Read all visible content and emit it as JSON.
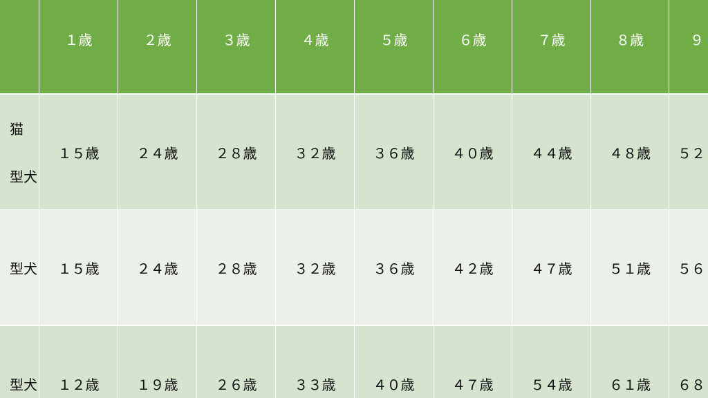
{
  "colors": {
    "header": "#70ad47",
    "row_dark": "#d5e3cf",
    "row_light": "#ebf0e8"
  },
  "header": [
    "",
    "１歳",
    "２歳",
    "３歳",
    "４歳",
    "５歳",
    "６歳",
    "７歳",
    "８歳",
    "９"
  ],
  "rows": [
    {
      "label": [
        "猫",
        "型犬"
      ],
      "values": [
        "１５歳",
        "２４歳",
        "２８歳",
        "３２歳",
        "３６歳",
        "４０歳",
        "４４歳",
        "４８歳",
        "５２"
      ]
    },
    {
      "label": [
        "型犬"
      ],
      "values": [
        "１５歳",
        "２４歳",
        "２８歳",
        "３２歳",
        "３６歳",
        "４２歳",
        "４７歳",
        "５１歳",
        "５６"
      ]
    },
    {
      "label": [
        "型犬"
      ],
      "values": [
        "１２歳",
        "１９歳",
        "２６歳",
        "３３歳",
        "４０歳",
        "４７歳",
        "５４歳",
        "６１歳",
        "６８"
      ]
    }
  ]
}
